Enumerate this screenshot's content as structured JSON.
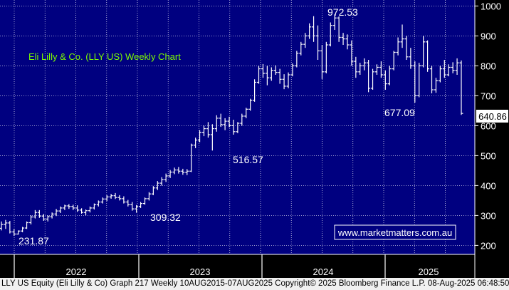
{
  "chart_data": {
    "type": "ohlc",
    "title": "Eli Lilly & Co. (LLY US) Weekly Chart",
    "watermark": "www.marketmatters.com.au",
    "y_axis": {
      "ticks": [
        200,
        300,
        400,
        500,
        600,
        700,
        800,
        900,
        1000
      ],
      "ylim": [
        170,
        1020
      ],
      "position": "right"
    },
    "x_axis": {
      "year_labels": [
        "2022",
        "2023",
        "2024",
        "2025"
      ]
    },
    "annotations": [
      "972.53",
      "677.09",
      "516.57",
      "309.32",
      "231.87"
    ],
    "last_price": "640.86",
    "colors": {
      "background": "#000080",
      "grid": "#ffffff",
      "bars": "#ffffff",
      "title": "#7cfc00",
      "watermark_border": "#ffffff",
      "axis_background": "#000000"
    },
    "series": [
      {
        "values": [
          [
            257,
            280,
            250,
            270
          ],
          [
            270,
            285,
            255,
            275
          ],
          [
            275,
            282,
            240,
            245
          ],
          [
            245,
            255,
            232,
            238
          ],
          [
            238,
            250,
            236,
            248
          ],
          [
            248,
            262,
            244,
            258
          ],
          [
            258,
            280,
            255,
            276
          ],
          [
            276,
            300,
            270,
            295
          ],
          [
            295,
            318,
            290,
            310
          ],
          [
            310,
            318,
            292,
            298
          ],
          [
            298,
            305,
            282,
            288
          ],
          [
            288,
            300,
            280,
            296
          ],
          [
            296,
            310,
            290,
            305
          ],
          [
            305,
            322,
            298,
            315
          ],
          [
            315,
            330,
            308,
            325
          ],
          [
            325,
            336,
            318,
            332
          ],
          [
            332,
            338,
            322,
            330
          ],
          [
            330,
            336,
            318,
            325
          ],
          [
            325,
            334,
            312,
            318
          ],
          [
            318,
            324,
            306,
            310
          ],
          [
            310,
            320,
            300,
            316
          ],
          [
            316,
            330,
            310,
            325
          ],
          [
            325,
            340,
            320,
            336
          ],
          [
            336,
            350,
            330,
            345
          ],
          [
            345,
            360,
            340,
            355
          ],
          [
            355,
            368,
            348,
            362
          ],
          [
            362,
            372,
            356,
            366
          ],
          [
            366,
            375,
            355,
            360
          ],
          [
            360,
            368,
            350,
            356
          ],
          [
            356,
            364,
            340,
            345
          ],
          [
            345,
            352,
            330,
            336
          ],
          [
            336,
            345,
            316,
            322
          ],
          [
            322,
            335,
            309,
            330
          ],
          [
            330,
            345,
            325,
            340
          ],
          [
            340,
            360,
            336,
            356
          ],
          [
            356,
            378,
            350,
            372
          ],
          [
            372,
            398,
            368,
            392
          ],
          [
            392,
            415,
            385,
            408
          ],
          [
            408,
            428,
            400,
            420
          ],
          [
            420,
            440,
            412,
            432
          ],
          [
            432,
            452,
            425,
            445
          ],
          [
            445,
            460,
            438,
            452
          ],
          [
            452,
            462,
            440,
            448
          ],
          [
            448,
            456,
            436,
            444
          ],
          [
            444,
            455,
            435,
            448
          ],
          [
            448,
            540,
            445,
            535
          ],
          [
            535,
            560,
            525,
            552
          ],
          [
            552,
            585,
            545,
            578
          ],
          [
            578,
            600,
            565,
            590
          ],
          [
            590,
            612,
            560,
            570
          ],
          [
            570,
            605,
            517,
            590
          ],
          [
            590,
            635,
            580,
            625
          ],
          [
            625,
            640,
            596,
            604
          ],
          [
            604,
            625,
            585,
            615
          ],
          [
            615,
            630,
            595,
            600
          ],
          [
            600,
            620,
            570,
            580
          ],
          [
            580,
            612,
            575,
            608
          ],
          [
            608,
            640,
            600,
            632
          ],
          [
            632,
            660,
            625,
            655
          ],
          [
            655,
            690,
            650,
            685
          ],
          [
            685,
            755,
            680,
            745
          ],
          [
            745,
            800,
            740,
            790
          ],
          [
            790,
            806,
            760,
            775
          ],
          [
            775,
            800,
            735,
            760
          ],
          [
            760,
            795,
            750,
            785
          ],
          [
            785,
            802,
            770,
            778
          ],
          [
            778,
            790,
            740,
            755
          ],
          [
            755,
            772,
            722,
            732
          ],
          [
            732,
            778,
            725,
            770
          ],
          [
            770,
            808,
            765,
            800
          ],
          [
            800,
            850,
            795,
            842
          ],
          [
            842,
            880,
            835,
            872
          ],
          [
            872,
            910,
            860,
            900
          ],
          [
            900,
            942,
            890,
            930
          ],
          [
            930,
            966,
            880,
            900
          ],
          [
            900,
            935,
            820,
            850
          ],
          [
            850,
            870,
            756,
            780
          ],
          [
            780,
            880,
            775,
            870
          ],
          [
            870,
            945,
            865,
            935
          ],
          [
            935,
            972,
            920,
            960
          ],
          [
            960,
            965,
            880,
            895
          ],
          [
            895,
            910,
            870,
            890
          ],
          [
            890,
            905,
            855,
            870
          ],
          [
            870,
            885,
            800,
            815
          ],
          [
            815,
            830,
            760,
            780
          ],
          [
            780,
            810,
            770,
            800
          ],
          [
            800,
            825,
            785,
            810
          ],
          [
            810,
            820,
            712,
            725
          ],
          [
            725,
            790,
            720,
            780
          ],
          [
            780,
            805,
            770,
            795
          ],
          [
            795,
            815,
            760,
            770
          ],
          [
            770,
            785,
            720,
            740
          ],
          [
            740,
            800,
            735,
            790
          ],
          [
            790,
            850,
            785,
            845
          ],
          [
            845,
            895,
            835,
            880
          ],
          [
            880,
            938,
            860,
            890
          ],
          [
            890,
            900,
            820,
            830
          ],
          [
            830,
            860,
            790,
            800
          ],
          [
            800,
            815,
            677,
            700
          ],
          [
            700,
            810,
            695,
            800
          ],
          [
            800,
            900,
            795,
            880
          ],
          [
            880,
            885,
            780,
            790
          ],
          [
            790,
            800,
            708,
            720
          ],
          [
            720,
            760,
            710,
            750
          ],
          [
            750,
            800,
            745,
            790
          ],
          [
            790,
            820,
            760,
            770
          ],
          [
            770,
            805,
            765,
            795
          ],
          [
            795,
            812,
            775,
            785
          ],
          [
            785,
            825,
            770,
            810
          ],
          [
            810,
            818,
            636,
            641
          ]
        ]
      }
    ]
  },
  "footer": {
    "text": "LLY US Equity (Eli Lilly & Co) Graph 217  Weekly 10AUG2015-07AUG2025 Copyright© 2025 Bloomberg Finance L.P.  08-Aug-2025 06:48:50"
  }
}
